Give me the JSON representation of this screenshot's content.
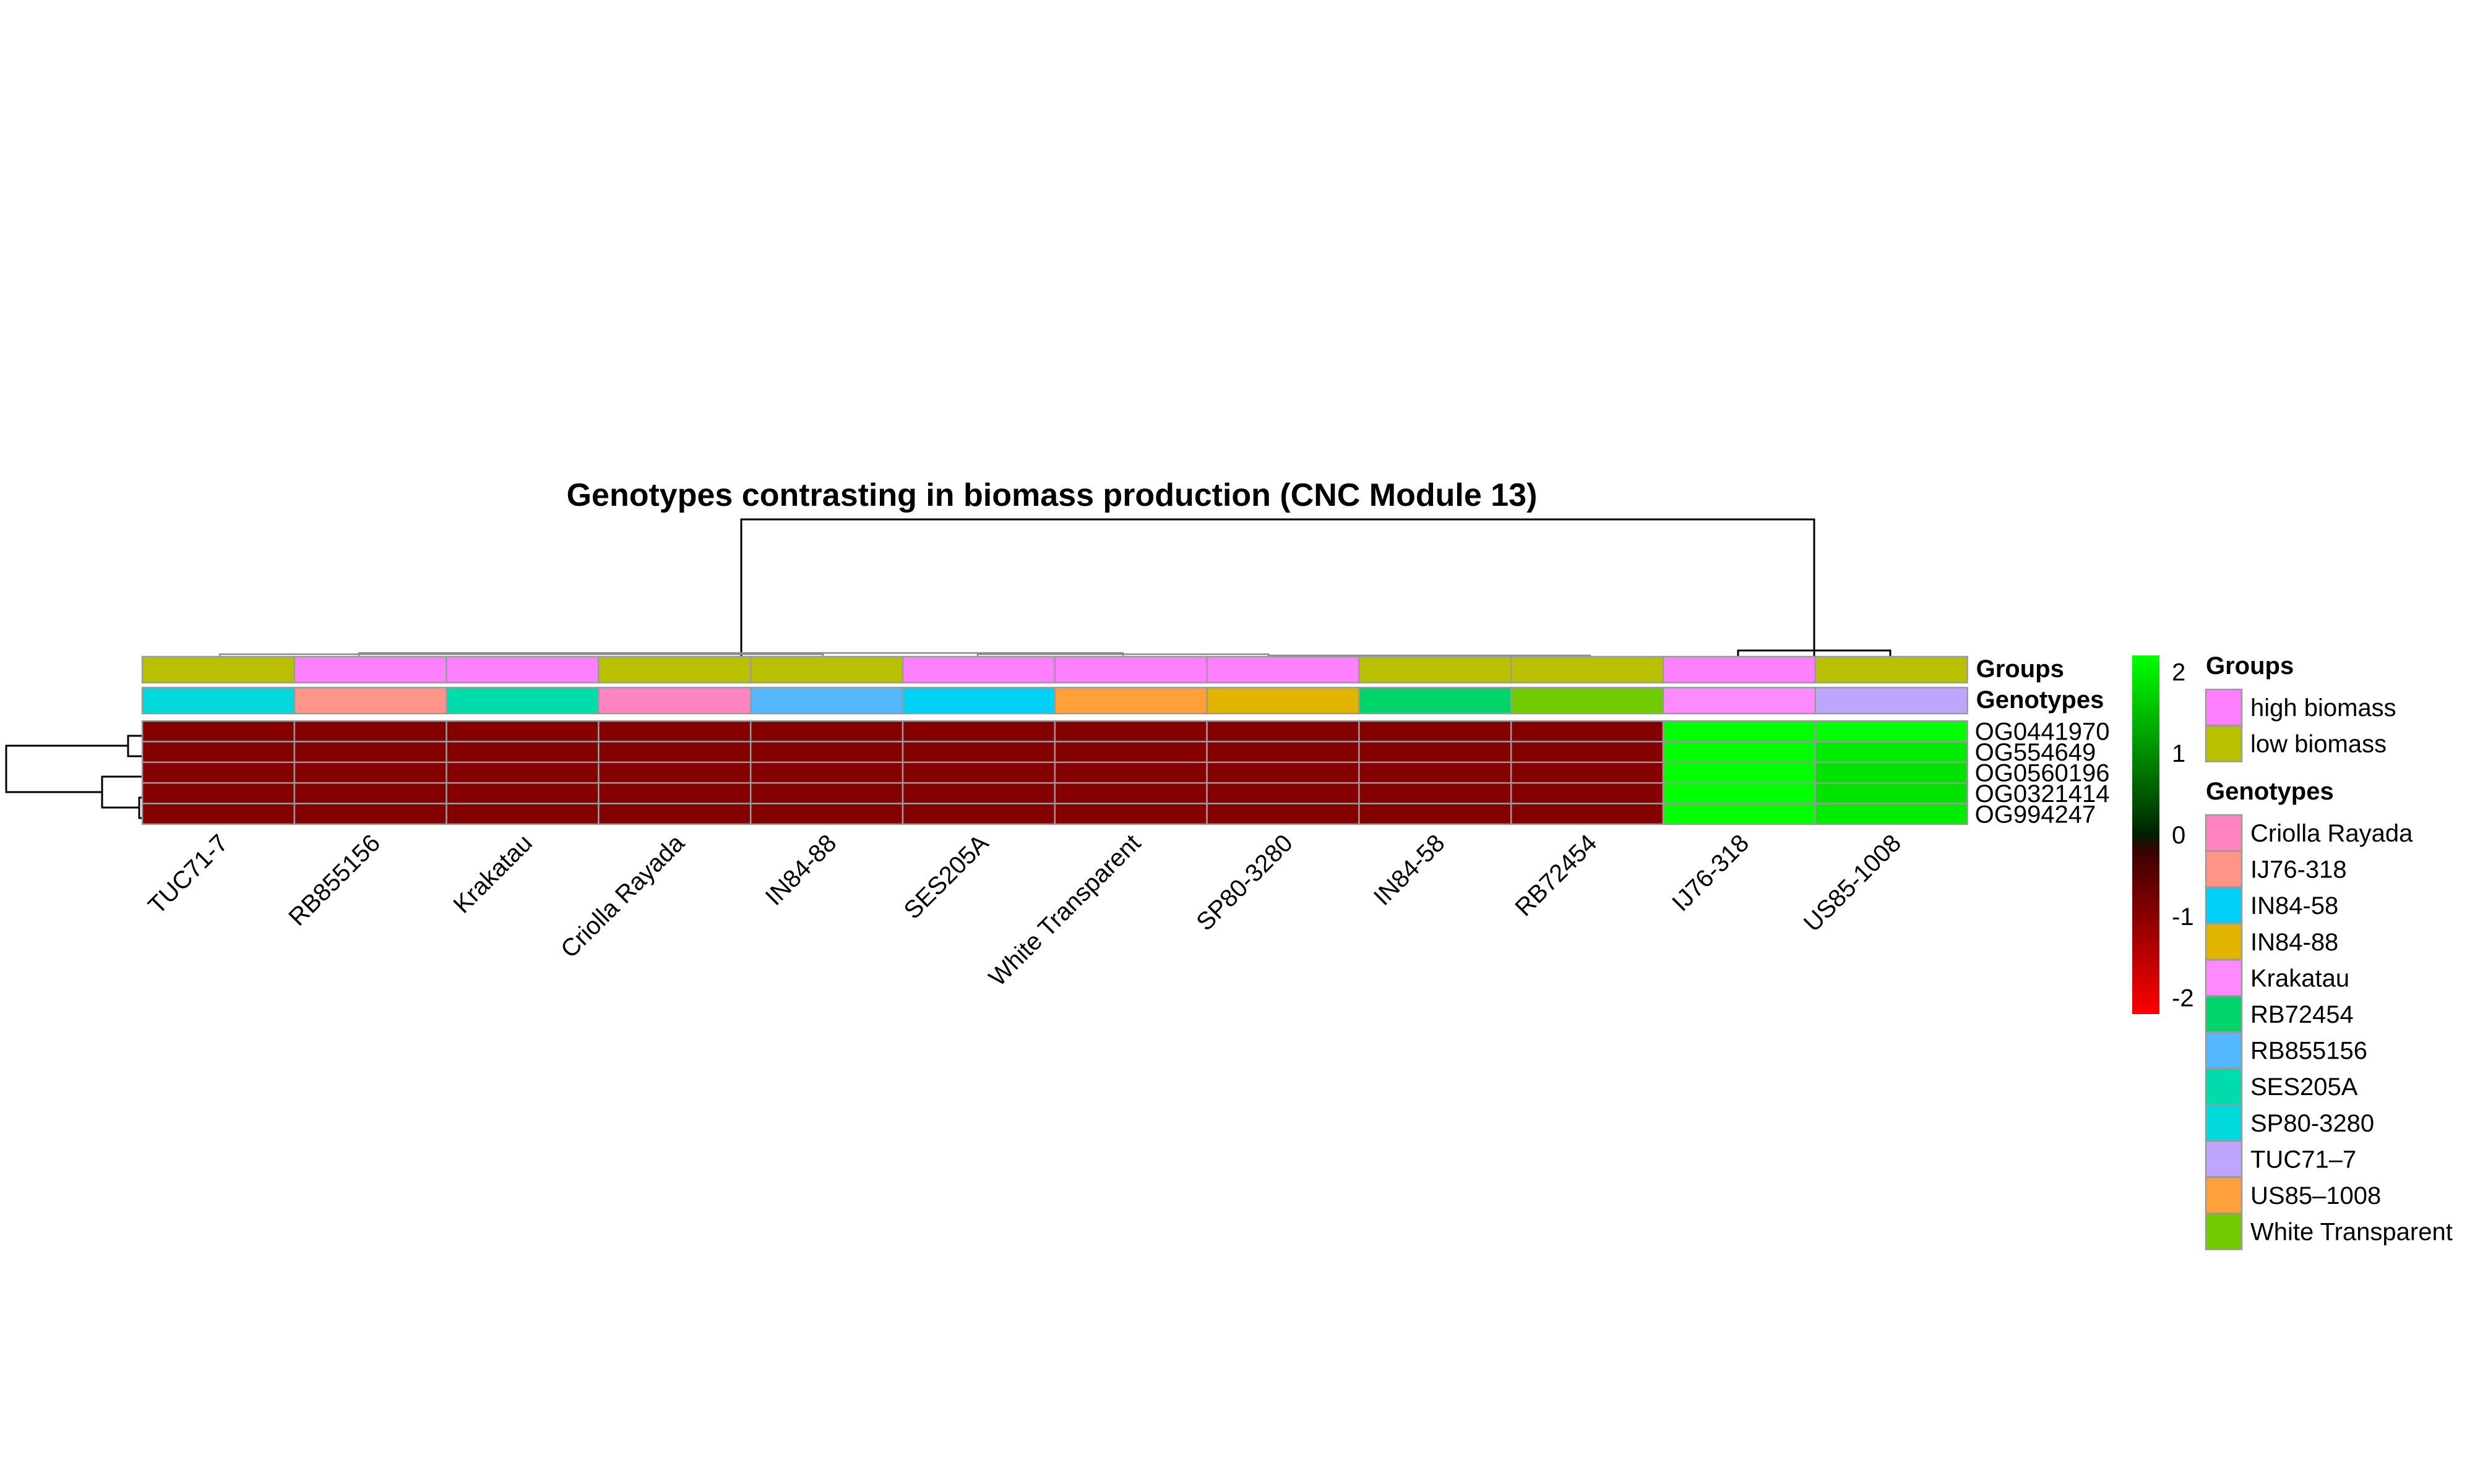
{
  "chart_data": {
    "type": "heatmap",
    "title": "Genotypes contrasting in biomass production (CNC Module 13)",
    "columns": [
      "TUC71-7",
      "RB855156",
      "Krakatau",
      "Criolla Rayada",
      "IN84-88",
      "SES205A",
      "White Transparent",
      "SP80-3280",
      "IN84-58",
      "RB72454",
      "IJ76-318",
      "US85-1008"
    ],
    "rows": [
      "OG0441970",
      "OG554649",
      "OG0560196",
      "OG0321414",
      "OG994247"
    ],
    "values": [
      [
        -0.95,
        -0.95,
        -0.95,
        -0.95,
        -0.95,
        -0.95,
        -0.95,
        -0.95,
        -0.95,
        -0.95,
        2.2,
        2.2
      ],
      [
        -0.95,
        -0.95,
        -0.95,
        -0.95,
        -0.95,
        -0.95,
        -0.95,
        -0.95,
        -0.95,
        -0.95,
        2.2,
        2.0
      ],
      [
        -0.95,
        -0.95,
        -0.95,
        -0.95,
        -0.95,
        -0.95,
        -0.95,
        -0.95,
        -0.95,
        -0.95,
        2.2,
        1.9
      ],
      [
        -0.95,
        -0.95,
        -0.95,
        -0.95,
        -0.95,
        -0.95,
        -0.95,
        -0.95,
        -0.95,
        -0.95,
        2.2,
        1.9
      ],
      [
        -0.95,
        -0.95,
        -0.95,
        -0.95,
        -0.95,
        -0.95,
        -0.95,
        -0.95,
        -0.95,
        -0.95,
        2.2,
        2.0
      ]
    ],
    "annotation_tracks": [
      {
        "name": "Groups",
        "values": [
          "low biomass",
          "high biomass",
          "high biomass",
          "low biomass",
          "low biomass",
          "high biomass",
          "high biomass",
          "high biomass",
          "low biomass",
          "low biomass",
          "high biomass",
          "low biomass"
        ]
      },
      {
        "name": "Genotypes",
        "values": [
          "SP80-3280",
          "IJ76-318",
          "SES205A",
          "Criolla Rayada",
          "RB855156",
          "IN84-58",
          "US85–1008",
          "IN84-88",
          "RB72454",
          "White Transparent",
          "Krakatau",
          "TUC71–7"
        ]
      }
    ],
    "color_scale": {
      "min": -2.2,
      "max": 2.2,
      "ticks": [
        2,
        1,
        0,
        -1,
        -2
      ],
      "low_color": "#ff0000",
      "mid_color": "#000000",
      "high_color": "#00ff00"
    },
    "legend": {
      "placement": "right",
      "groups": {
        "title": "Groups",
        "items": [
          {
            "label": "high biomass",
            "color": "#ff80ff"
          },
          {
            "label": "low biomass",
            "color": "#b8c000"
          }
        ]
      },
      "genotypes": {
        "title": "Genotypes",
        "items": [
          {
            "label": "Criolla Rayada",
            "color": "#ff85c0"
          },
          {
            "label": "IJ76-318",
            "color": "#ff9488"
          },
          {
            "label": "IN84-58",
            "color": "#00d0f5"
          },
          {
            "label": "IN84-88",
            "color": "#e1b400"
          },
          {
            "label": "Krakatau",
            "color": "#ff8aff"
          },
          {
            "label": "RB72454",
            "color": "#00d46a"
          },
          {
            "label": "RB855156",
            "color": "#54b8ff"
          },
          {
            "label": "SES205A",
            "color": "#00dcac"
          },
          {
            "label": "SP80-3280",
            "color": "#00d8dc"
          },
          {
            "label": "TUC71–7",
            "color": "#bea6ff"
          },
          {
            "label": "US85–1008",
            "color": "#ffa03a"
          },
          {
            "label": "White Transparent",
            "color": "#70cc00"
          }
        ]
      }
    }
  }
}
